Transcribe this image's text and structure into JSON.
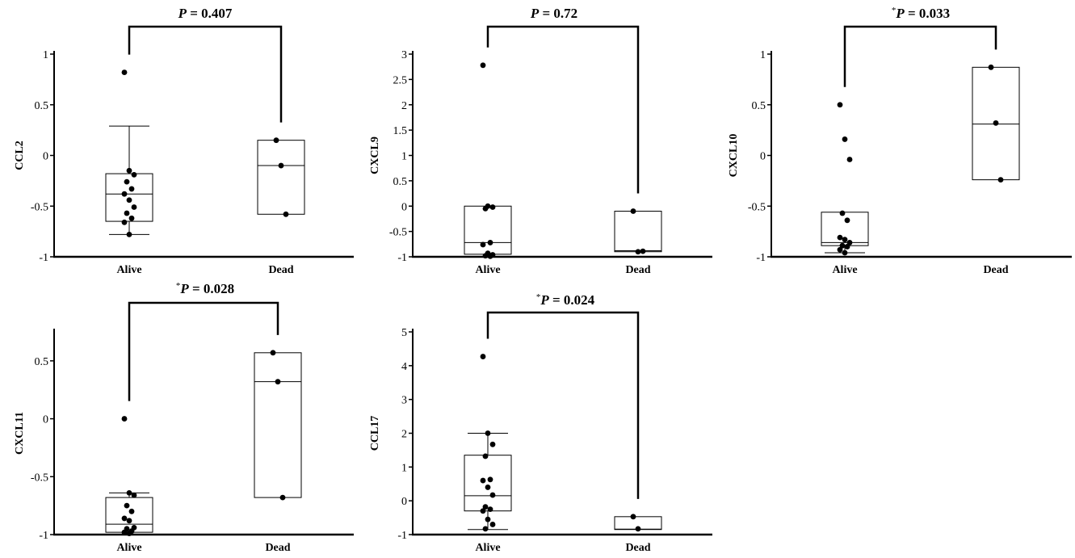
{
  "chart_data": [
    {
      "type": "box",
      "ylabel": "CCL2",
      "ylim": [
        -1,
        1
      ],
      "yticks": [
        "-1",
        "-0.5",
        "0",
        "0.5",
        "1"
      ],
      "categories": [
        "Alive",
        "Dead"
      ],
      "pvalue": {
        "star": "",
        "p": "P",
        "text": " = 0.407"
      },
      "groups": [
        {
          "name": "Alive",
          "whisker_low": -0.78,
          "q1": -0.65,
          "median": -0.38,
          "q3": -0.18,
          "whisker_high": 0.29,
          "box_bounds": false,
          "points": [
            0.82,
            -0.15,
            -0.19,
            -0.26,
            -0.33,
            -0.38,
            -0.44,
            -0.51,
            -0.57,
            -0.62,
            -0.66,
            -0.78
          ]
        },
        {
          "name": "Dead",
          "whisker_low": null,
          "q1": -0.58,
          "median": -0.1,
          "q3": 0.15,
          "whisker_high": null,
          "box_bounds": true,
          "points": [
            0.15,
            -0.1,
            -0.58
          ]
        }
      ]
    },
    {
      "type": "box",
      "ylabel": "CXCL9",
      "ylim": [
        -1,
        3
      ],
      "yticks": [
        "-1",
        "-0.5",
        "0",
        "0.5",
        "1",
        "1.5",
        "2",
        "2.5",
        "3"
      ],
      "categories": [
        "Alive",
        "Dead"
      ],
      "pvalue": {
        "star": "",
        "p": "P",
        "text": " = 0.72"
      },
      "groups": [
        {
          "name": "Alive",
          "whisker_low": null,
          "q1": -0.95,
          "median": -0.72,
          "q3": 0.0,
          "whisker_high": null,
          "box_bounds": false,
          "points": [
            2.78,
            0.0,
            -0.02,
            -0.05,
            -0.72,
            -0.76,
            -0.93,
            -0.96,
            -0.98,
            -0.99
          ]
        },
        {
          "name": "Dead",
          "whisker_low": null,
          "q1": -0.9,
          "median": -0.88,
          "q3": -0.1,
          "whisker_high": null,
          "box_bounds": true,
          "points": [
            -0.1,
            -0.9,
            -0.89
          ]
        }
      ]
    },
    {
      "type": "box",
      "ylabel": "CXCL10",
      "ylim": [
        -1,
        1
      ],
      "yticks": [
        "-1",
        "-0.5",
        "0",
        "0.5",
        "1"
      ],
      "categories": [
        "Alive",
        "Dead"
      ],
      "pvalue": {
        "star": "*",
        "p": "P",
        "text": " = 0.033"
      },
      "groups": [
        {
          "name": "Alive",
          "whisker_low": -0.96,
          "q1": -0.89,
          "median": -0.86,
          "q3": -0.56,
          "whisker_high": null,
          "box_bounds": false,
          "points": [
            0.5,
            0.16,
            -0.04,
            -0.57,
            -0.64,
            -0.81,
            -0.83,
            -0.86,
            -0.89,
            -0.9,
            -0.93,
            -0.96
          ]
        },
        {
          "name": "Dead",
          "whisker_low": null,
          "q1": -0.24,
          "median": 0.31,
          "q3": 0.87,
          "whisker_high": null,
          "box_bounds": true,
          "points": [
            0.87,
            0.32,
            -0.24
          ]
        }
      ]
    },
    {
      "type": "box",
      "ylabel": "CXCL11",
      "ylim": [
        -1,
        0.75
      ],
      "yticks": [
        "-1",
        "-0.5",
        "0",
        "0.5"
      ],
      "categories": [
        "Alive",
        "Dead"
      ],
      "pvalue": {
        "star": "*",
        "p": "P",
        "text": " = 0.028"
      },
      "groups": [
        {
          "name": "Alive",
          "whisker_low": null,
          "q1": -0.98,
          "median": -0.91,
          "q3": -0.68,
          "whisker_high": -0.64,
          "box_bounds": false,
          "points": [
            0.0,
            -0.64,
            -0.66,
            -0.75,
            -0.8,
            -0.86,
            -0.88,
            -0.94,
            -0.95,
            -0.97,
            -0.98,
            -0.99
          ]
        },
        {
          "name": "Dead",
          "whisker_low": null,
          "q1": -0.68,
          "median": 0.32,
          "q3": 0.57,
          "whisker_high": null,
          "box_bounds": true,
          "points": [
            0.57,
            0.32,
            -0.68
          ]
        }
      ]
    },
    {
      "type": "box",
      "ylabel": "CCL17",
      "ylim": [
        -1,
        5
      ],
      "yticks": [
        "-1",
        "0",
        "1",
        "2",
        "3",
        "4",
        "5"
      ],
      "categories": [
        "Alive",
        "Dead"
      ],
      "pvalue": {
        "star": "*",
        "p": "P",
        "text": " = 0.024"
      },
      "groups": [
        {
          "name": "Alive",
          "whisker_low": -0.85,
          "q1": -0.3,
          "median": 0.15,
          "q3": 1.35,
          "whisker_high": 2.0,
          "box_bounds": false,
          "points": [
            4.27,
            2.0,
            1.67,
            1.32,
            0.63,
            0.6,
            0.4,
            0.17,
            -0.18,
            -0.25,
            -0.3,
            -0.55,
            -0.7,
            -0.83
          ]
        },
        {
          "name": "Dead",
          "whisker_low": null,
          "q1": -0.85,
          "median": -0.84,
          "q3": -0.47,
          "whisker_high": null,
          "box_bounds": true,
          "points": [
            -0.47,
            -0.83
          ]
        }
      ]
    }
  ]
}
